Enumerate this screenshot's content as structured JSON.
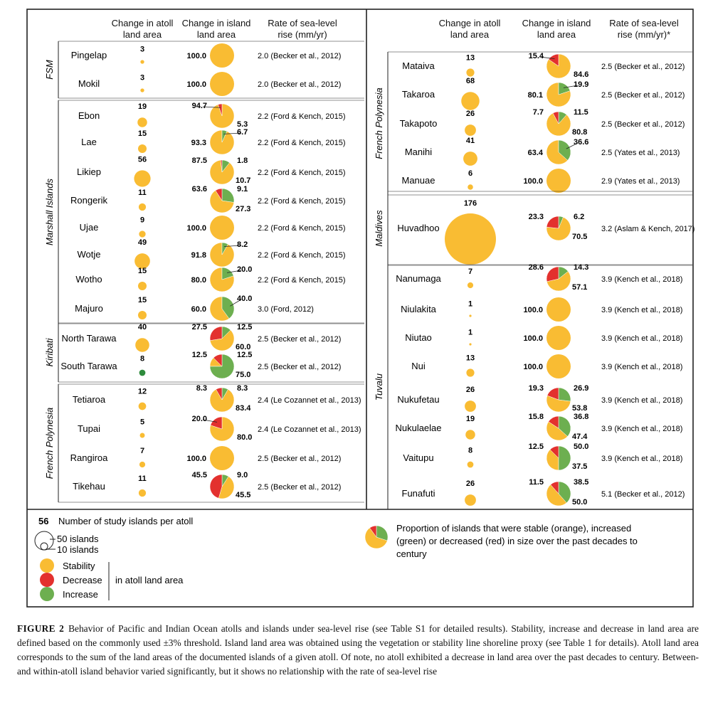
{
  "columns": {
    "atoll_area": "Change in atoll land area",
    "island_area": "Change in island land area",
    "slr_left": "Rate of sea-level rise (mm/yr)",
    "slr_right": "Rate of sea-level rise (mm/yr)*"
  },
  "colors": {
    "stability": "#F9BC33",
    "decrease": "#E3312E",
    "increase": "#6DAF50",
    "island": "#2E8B3C"
  },
  "chart_data": {
    "type": "pie",
    "title": "Behavior of Pacific and Indian Ocean atolls and islands under sea-level rise",
    "left_panel": [
      {
        "region": "FSM",
        "atolls": [
          {
            "name": "Pingelap",
            "n": "3",
            "stable": 100.0,
            "increase": 0,
            "decrease": 0,
            "labels": [
              "100.0"
            ],
            "slr": "2.0 (Becker et al., 2012)"
          },
          {
            "name": "Mokil",
            "n": "3",
            "stable": 100.0,
            "increase": 0,
            "decrease": 0,
            "labels": [
              "100.0"
            ],
            "slr": "2.0 (Becker et al., 2012)"
          }
        ]
      },
      {
        "region": "Marshall Islands",
        "atolls": [
          {
            "name": "Ebon",
            "n": "19",
            "stable": 94.7,
            "increase": 0,
            "decrease": 5.3,
            "labels": [
              "94.7",
              "5.3"
            ],
            "slr": "2.2 (Ford & Kench, 2015)"
          },
          {
            "name": "Lae",
            "n": "15",
            "stable": 93.3,
            "increase": 6.7,
            "decrease": 0,
            "labels": [
              "93.3",
              "6.7"
            ],
            "slr": "2.2 (Ford & Kench, 2015)"
          },
          {
            "name": "Likiep",
            "n": "56",
            "stable": 87.5,
            "increase": 10.7,
            "decrease": 1.8,
            "labels": [
              "87.5",
              "1.8",
              "10.7"
            ],
            "slr": "2.2 (Ford & Kench, 2015)"
          },
          {
            "name": "Rongerik",
            "n": "11",
            "stable": 63.6,
            "increase": 27.3,
            "decrease": 9.1,
            "labels": [
              "63.6",
              "9.1",
              "27.3"
            ],
            "slr": "2.2 (Ford & Kench, 2015)"
          },
          {
            "name": "Ujae",
            "n": "9",
            "stable": 100.0,
            "increase": 0,
            "decrease": 0,
            "labels": [
              "100.0"
            ],
            "slr": "2.2 (Ford & Kench, 2015)"
          },
          {
            "name": "Wotje",
            "n": "49",
            "stable": 91.8,
            "increase": 8.2,
            "decrease": 0,
            "labels": [
              "91.8",
              "8.2"
            ],
            "slr": "2.2 (Ford & Kench, 2015)"
          },
          {
            "name": "Wotho",
            "n": "15",
            "stable": 80.0,
            "increase": 20.0,
            "decrease": 0,
            "labels": [
              "80.0",
              "20.0"
            ],
            "slr": "2.2 (Ford & Kench, 2015)"
          },
          {
            "name": "Majuro",
            "n": "15",
            "stable": 60.0,
            "increase": 40.0,
            "decrease": 0,
            "labels": [
              "60.0",
              "40.0"
            ],
            "slr": "3.0 (Ford, 2012)"
          }
        ]
      },
      {
        "region": "Kiribati",
        "atolls": [
          {
            "name": "North Tarawa",
            "n": "40",
            "stable": 60.0,
            "increase": 12.5,
            "decrease": 27.5,
            "labels": [
              "27.5",
              "12.5",
              "60.0"
            ],
            "slr": "2.5 (Becker et al., 2012)"
          },
          {
            "name": "South Tarawa",
            "n": "8",
            "stable": 12.5,
            "increase": 75.0,
            "decrease": 12.5,
            "labels": [
              "12.5",
              "12.5",
              "75.0"
            ],
            "slr": "2.5 (Becker et al., 2012)",
            "atoll_increase": true
          }
        ]
      },
      {
        "region": "French Polynesia",
        "atolls": [
          {
            "name": "Tetiaroa",
            "n": "12",
            "stable": 83.4,
            "increase": 8.3,
            "decrease": 8.3,
            "labels": [
              "8.3",
              "8.3",
              "83.4"
            ],
            "slr": "2.4 (Le Cozannet et al., 2013)"
          },
          {
            "name": "Tupai",
            "n": "5",
            "stable": 80.0,
            "increase": 0,
            "decrease": 20.0,
            "labels": [
              "20.0",
              "80.0"
            ],
            "slr": "2.4 (Le Cozannet et al., 2013)"
          },
          {
            "name": "Rangiroa",
            "n": "7",
            "stable": 100.0,
            "increase": 0,
            "decrease": 0,
            "labels": [
              "100.0"
            ],
            "slr": "2.5 (Becker et al., 2012)"
          },
          {
            "name": "Tikehau",
            "n": "11",
            "stable": 45.5,
            "increase": 9.0,
            "decrease": 45.5,
            "labels": [
              "45.5",
              "9.0",
              "45.5"
            ],
            "slr": "2.5 (Becker et al., 2012)"
          }
        ]
      }
    ],
    "right_panel": [
      {
        "region": "French Polynesia",
        "atolls": [
          {
            "name": "Mataiva",
            "n": "13",
            "stable": 84.6,
            "increase": 0,
            "decrease": 15.4,
            "labels": [
              "15.4",
              "84.6"
            ],
            "slr": "2.5 (Becker et al., 2012)"
          },
          {
            "name": "Takaroa",
            "n": "68",
            "stable": 80.1,
            "increase": 19.9,
            "decrease": 0,
            "labels": [
              "80.1",
              "19.9"
            ],
            "slr": "2.5 (Becker et al., 2012)"
          },
          {
            "name": "Takapoto",
            "n": "26",
            "stable": 80.8,
            "increase": 11.5,
            "decrease": 7.7,
            "labels": [
              "7.7",
              "11.5",
              "80.8"
            ],
            "slr": "2.5 (Becker et al., 2012)"
          },
          {
            "name": "Manihi",
            "n": "41",
            "stable": 63.4,
            "increase": 36.6,
            "decrease": 0,
            "labels": [
              "63.4",
              "36.6"
            ],
            "slr": "2.5 (Yates et al., 2013)"
          },
          {
            "name": "Manuae",
            "n": "6",
            "stable": 100.0,
            "increase": 0,
            "decrease": 0,
            "labels": [
              "100.0"
            ],
            "slr": "2.9 (Yates et al., 2013)"
          }
        ]
      },
      {
        "region": "Maldives",
        "atolls": [
          {
            "name": "Huvadhoo",
            "n": "176",
            "stable": 70.5,
            "increase": 6.2,
            "decrease": 23.3,
            "labels": [
              "23.3",
              "6.2",
              "70.5"
            ],
            "slr": "3.2 (Aslam & Kench, 2017)"
          }
        ]
      },
      {
        "region": "Tuvalu",
        "atolls": [
          {
            "name": "Nanumaga",
            "n": "7",
            "stable": 57.1,
            "increase": 14.3,
            "decrease": 28.6,
            "labels": [
              "28.6",
              "14.3",
              "57.1"
            ],
            "slr": "3.9 (Kench et al., 2018)"
          },
          {
            "name": "Niulakita",
            "n": "1",
            "stable": 100.0,
            "increase": 0,
            "decrease": 0,
            "labels": [
              "100.0"
            ],
            "slr": "3.9 (Kench et al., 2018)"
          },
          {
            "name": "Niutao",
            "n": "1",
            "stable": 100.0,
            "increase": 0,
            "decrease": 0,
            "labels": [
              "100.0"
            ],
            "slr": "3.9 (Kench et al., 2018)"
          },
          {
            "name": "Nui",
            "n": "13",
            "stable": 100.0,
            "increase": 0,
            "decrease": 0,
            "labels": [
              "100.0"
            ],
            "slr": "3.9 (Kench et al., 2018)"
          },
          {
            "name": "Nukufetau",
            "n": "26",
            "stable": 53.8,
            "increase": 26.9,
            "decrease": 19.3,
            "labels": [
              "19.3",
              "26.9",
              "53.8"
            ],
            "slr": "3.9 (Kench et al., 2018)"
          },
          {
            "name": "Nukulaelae",
            "n": "19",
            "stable": 47.4,
            "increase": 36.8,
            "decrease": 15.8,
            "labels": [
              "15.8",
              "36.8",
              "47.4"
            ],
            "slr": "3.9 (Kench et al., 2018)"
          },
          {
            "name": "Vaitupu",
            "n": "8",
            "stable": 37.5,
            "increase": 50.0,
            "decrease": 12.5,
            "labels": [
              "12.5",
              "50.0",
              "37.5"
            ],
            "slr": "3.9 (Kench et al., 2018)"
          },
          {
            "name": "Funafuti",
            "n": "26",
            "stable": 50.0,
            "increase": 38.5,
            "decrease": 11.5,
            "labels": [
              "11.5",
              "38.5",
              "50.0"
            ],
            "slr": "5.1 (Becker et al., 2012)"
          }
        ]
      }
    ]
  },
  "legend": {
    "count_example": "56",
    "count_label": "Number of study islands per atoll",
    "size_50": "50 islands",
    "size_10": "10 islands",
    "stability": "Stability",
    "decrease": "Decrease",
    "increase": "Increase",
    "in_atoll": "in atoll land area",
    "pie_text_1": "Proportion of islands that were stable (orange), increased",
    "pie_text_2": "(green) or decreased (red) in size over the past decades to",
    "pie_text_3": "century"
  },
  "caption": {
    "label": "FIGURE 2",
    "text": "Behavior of Pacific and Indian Ocean atolls and islands under sea-level rise (see Table S1 for detailed results). Stability, increase and decrease in land area are defined based on the commonly used ±3% threshold. Island land area was obtained using the vegetation or stability line shoreline proxy (see Table 1 for details). Atoll land area corresponds to the sum of the land areas of the documented islands of a given atoll. Of note, no atoll exhibited a decrease in land area over the past decades to century. Between- and within-atoll island behavior varied significantly, but it shows no relationship with the rate of sea-level rise"
  }
}
